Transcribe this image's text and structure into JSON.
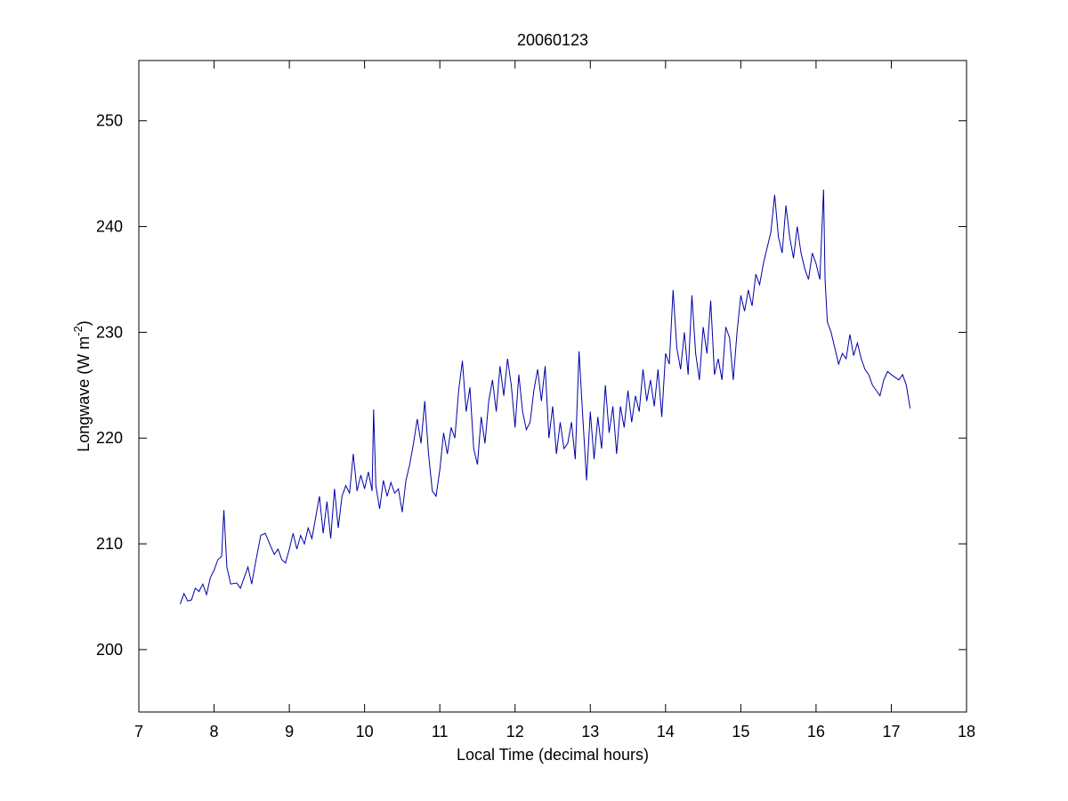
{
  "chart_data": {
    "type": "line",
    "title": "20060123",
    "xlabel": "Local Time (decimal hours)",
    "ylabel": {
      "text": "Longwave (W m",
      "superscript": "-2",
      "suffix": ")"
    },
    "xlim": [
      7,
      18
    ],
    "xticks": [
      7,
      8,
      9,
      10,
      11,
      12,
      13,
      14,
      15,
      16,
      17,
      18
    ],
    "ylim": [
      194.1,
      255.7
    ],
    "yticks": [
      200,
      210,
      220,
      230,
      240,
      250
    ],
    "series": [
      {
        "color": "#0000a8",
        "x": [
          7.55,
          7.6,
          7.65,
          7.7,
          7.75,
          7.8,
          7.85,
          7.9,
          7.95,
          8.0,
          8.05,
          8.1,
          8.13,
          8.17,
          8.22,
          8.3,
          8.35,
          8.4,
          8.45,
          8.5,
          8.55,
          8.62,
          8.68,
          8.75,
          8.8,
          8.85,
          8.9,
          8.95,
          9.0,
          9.05,
          9.1,
          9.15,
          9.2,
          9.25,
          9.3,
          9.35,
          9.4,
          9.45,
          9.5,
          9.55,
          9.6,
          9.65,
          9.7,
          9.75,
          9.8,
          9.85,
          9.9,
          9.95,
          10.0,
          10.05,
          10.1,
          10.12,
          10.15,
          10.2,
          10.25,
          10.3,
          10.35,
          10.4,
          10.45,
          10.5,
          10.55,
          10.6,
          10.65,
          10.7,
          10.75,
          10.8,
          10.85,
          10.9,
          10.95,
          11.0,
          11.05,
          11.1,
          11.15,
          11.2,
          11.25,
          11.3,
          11.35,
          11.4,
          11.45,
          11.5,
          11.55,
          11.6,
          11.65,
          11.7,
          11.75,
          11.8,
          11.85,
          11.9,
          11.95,
          12.0,
          12.05,
          12.1,
          12.15,
          12.2,
          12.25,
          12.3,
          12.35,
          12.4,
          12.45,
          12.5,
          12.55,
          12.6,
          12.65,
          12.7,
          12.75,
          12.8,
          12.85,
          12.9,
          12.95,
          13.0,
          13.05,
          13.1,
          13.15,
          13.2,
          13.25,
          13.3,
          13.35,
          13.4,
          13.45,
          13.5,
          13.55,
          13.6,
          13.65,
          13.7,
          13.75,
          13.8,
          13.85,
          13.9,
          13.95,
          14.0,
          14.05,
          14.1,
          14.15,
          14.2,
          14.25,
          14.3,
          14.35,
          14.4,
          14.45,
          14.5,
          14.55,
          14.6,
          14.65,
          14.7,
          14.75,
          14.8,
          14.85,
          14.9,
          14.95,
          15.0,
          15.05,
          15.1,
          15.15,
          15.2,
          15.25,
          15.3,
          15.35,
          15.4,
          15.45,
          15.5,
          15.55,
          15.6,
          15.65,
          15.7,
          15.75,
          15.8,
          15.85,
          15.9,
          15.95,
          16.0,
          16.05,
          16.1,
          16.12,
          16.15,
          16.2,
          16.25,
          16.3,
          16.35,
          16.4,
          16.45,
          16.5,
          16.55,
          16.6,
          16.65,
          16.7,
          16.75,
          16.8,
          16.85,
          16.9,
          16.95,
          17.0,
          17.1,
          17.15,
          17.2,
          17.25
        ],
        "values": [
          204.3,
          205.3,
          204.6,
          204.7,
          205.8,
          205.5,
          206.2,
          205.2,
          206.8,
          207.5,
          208.5,
          208.8,
          213.2,
          207.8,
          206.2,
          206.3,
          205.8,
          206.8,
          207.8,
          206.2,
          208.2,
          210.8,
          211.0,
          209.8,
          209.0,
          209.5,
          208.5,
          208.2,
          209.5,
          211.0,
          209.5,
          210.8,
          210.0,
          211.5,
          210.5,
          212.5,
          214.5,
          211.0,
          214.0,
          210.5,
          215.2,
          211.5,
          214.5,
          215.5,
          214.8,
          218.5,
          215.0,
          216.5,
          215.2,
          216.8,
          215.0,
          222.7,
          215.5,
          213.3,
          216.0,
          214.5,
          215.8,
          214.8,
          215.2,
          213.0,
          216.0,
          217.5,
          219.5,
          221.8,
          219.5,
          223.5,
          218.5,
          215.0,
          214.5,
          217.0,
          220.5,
          218.5,
          221.0,
          220.0,
          224.5,
          227.3,
          222.5,
          224.8,
          219.0,
          217.5,
          222.0,
          219.5,
          223.5,
          225.5,
          222.5,
          226.8,
          224.0,
          227.5,
          225.0,
          221.0,
          226.0,
          222.5,
          220.8,
          221.5,
          224.5,
          226.5,
          223.5,
          226.8,
          220.0,
          223.0,
          218.5,
          221.5,
          219.0,
          219.5,
          221.5,
          218.0,
          228.2,
          222.0,
          216.0,
          222.5,
          218.0,
          222.0,
          219.0,
          225.0,
          220.5,
          223.0,
          218.5,
          223.0,
          221.0,
          224.5,
          221.5,
          224.0,
          222.5,
          226.5,
          223.5,
          225.5,
          223.0,
          226.5,
          222.0,
          228.0,
          227.0,
          234.0,
          228.5,
          226.5,
          230.0,
          226.0,
          233.5,
          228.0,
          225.5,
          230.5,
          228.0,
          233.0,
          226.0,
          227.5,
          225.5,
          230.5,
          229.5,
          225.5,
          230.0,
          233.5,
          232.0,
          234.0,
          232.5,
          235.5,
          234.5,
          236.5,
          238.0,
          239.5,
          243.0,
          239.0,
          237.5,
          242.0,
          239.0,
          237.0,
          240.0,
          237.5,
          236.0,
          235.0,
          237.5,
          236.5,
          235.0,
          243.5,
          235.0,
          231.0,
          230.0,
          228.5,
          227.0,
          228.0,
          227.5,
          229.8,
          227.8,
          229.0,
          227.5,
          226.5,
          226.0,
          225.0,
          224.5,
          224.0,
          225.5,
          226.3,
          226.0,
          225.5,
          226.0,
          225.0,
          222.8
        ]
      }
    ]
  }
}
